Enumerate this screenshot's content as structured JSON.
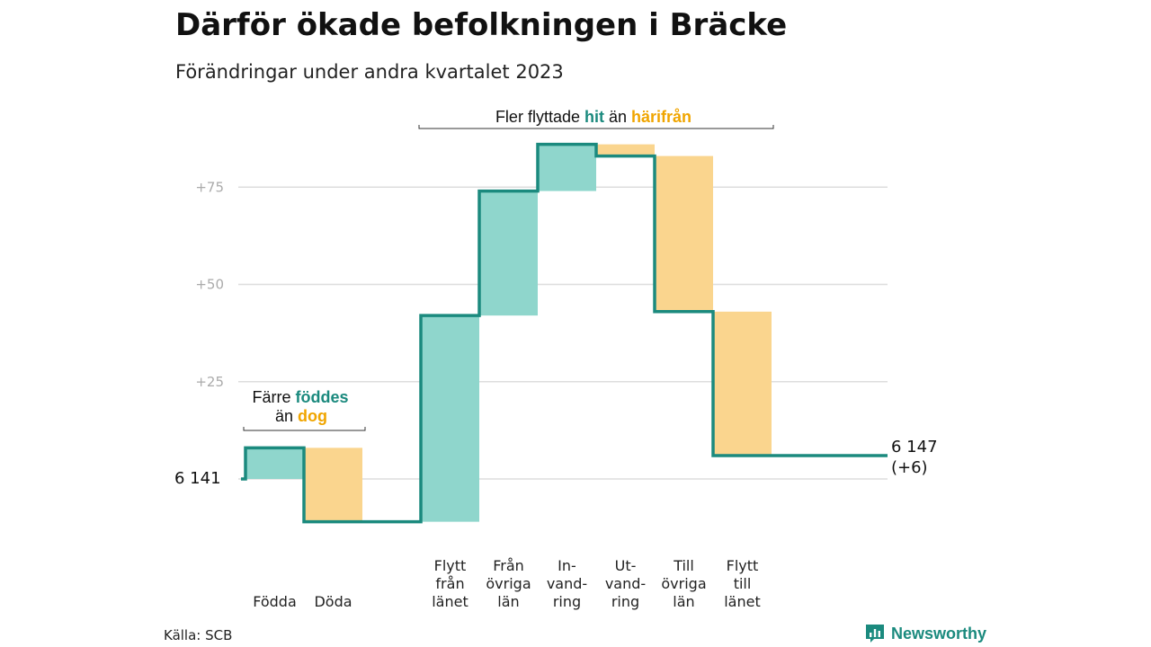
{
  "header": {
    "title": "Därför ökade befolkningen i Bräcke",
    "subtitle": "Förändringar under andra kvartalet 2023"
  },
  "footer": {
    "source": "Källa: SCB",
    "brand": "Newsworthy"
  },
  "colors": {
    "increase": "#8fd6cc",
    "decrease": "#fad58e",
    "line": "#1b8a7e",
    "highlight_in": "#1b8a7e",
    "highlight_out": "#f0a500",
    "grid": "#dddddd"
  },
  "chart_data": {
    "type": "waterfall",
    "title": "Därför ökade befolkningen i Bräcke",
    "subtitle": "Förändringar under andra kvartalet 2023",
    "start_label": "6  141",
    "end_label_line1": "6 147",
    "end_label_line2": "(+6)",
    "ylim": [
      -11,
      87
    ],
    "yticks": [
      25,
      50,
      75
    ],
    "ytick_labels": [
      "+25",
      "+50",
      "+75"
    ],
    "grid": true,
    "steps": [
      {
        "label_lines": [
          "Födda"
        ],
        "value": 8,
        "direction": "increase",
        "group": 1
      },
      {
        "label_lines": [
          "Döda"
        ],
        "value": -19,
        "direction": "decrease",
        "group": 1
      },
      {
        "label_lines": [
          "Flytt",
          "från",
          "länet"
        ],
        "value": 53,
        "direction": "increase",
        "group": 2
      },
      {
        "label_lines": [
          "Från",
          "övriga",
          "län"
        ],
        "value": 32,
        "direction": "increase",
        "group": 2
      },
      {
        "label_lines": [
          "In-",
          "vand-",
          "ring"
        ],
        "value": 12,
        "direction": "increase",
        "group": 2
      },
      {
        "label_lines": [
          "Ut-",
          "vand-",
          "ring"
        ],
        "value": -3,
        "direction": "decrease",
        "group": 2
      },
      {
        "label_lines": [
          "Till",
          "övriga",
          "län"
        ],
        "value": -40,
        "direction": "decrease",
        "group": 2
      },
      {
        "label_lines": [
          "Flytt",
          "till",
          "länet"
        ],
        "value": -37,
        "direction": "decrease",
        "group": 2
      }
    ],
    "annotations": [
      {
        "parts": [
          {
            "text": "Färre ",
            "style": "plain"
          },
          {
            "text": "föddes",
            "style": "in"
          }
        ],
        "parts2": [
          {
            "text": "än ",
            "style": "plain"
          },
          {
            "text": "dog",
            "style": "out"
          }
        ]
      },
      {
        "parts": [
          {
            "text": "Fler flyttade ",
            "style": "plain"
          },
          {
            "text": "hit",
            "style": "in"
          },
          {
            "text": " än ",
            "style": "plain"
          },
          {
            "text": "härifrån",
            "style": "out"
          }
        ]
      }
    ]
  }
}
